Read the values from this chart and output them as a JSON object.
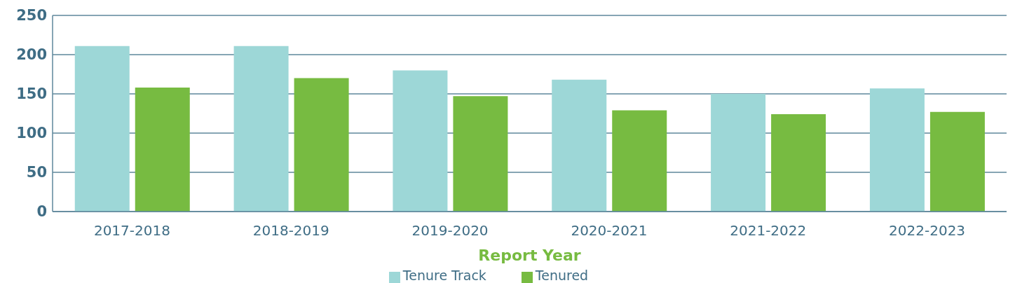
{
  "chart_data": {
    "type": "bar",
    "xlabel": "Report Year",
    "categories": [
      "2017-2018",
      "2018-2019",
      "2019-2020",
      "2020-2021",
      "2021-2022",
      "2022-2023"
    ],
    "series": [
      {
        "name": "Tenure Track",
        "color": "#9dd7d7",
        "values": [
          211,
          211,
          180,
          168,
          150,
          157
        ]
      },
      {
        "name": "Tenured",
        "color": "#77bb41",
        "values": [
          158,
          170,
          147,
          129,
          124,
          127
        ]
      }
    ],
    "ylim": [
      0,
      250
    ],
    "yticks": [
      0,
      50,
      100,
      150,
      200,
      250
    ],
    "grid": "y",
    "legend": "bottom"
  }
}
